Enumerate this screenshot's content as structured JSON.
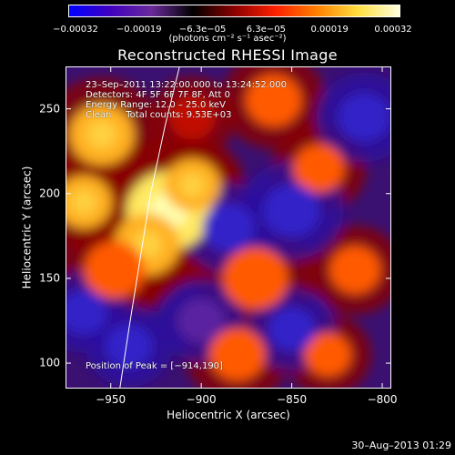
{
  "chart_data": {
    "type": "heatmap",
    "title": "Reconstructed RHESSI Image",
    "xlabel": "Heliocentric X (arcsec)",
    "ylabel": "Heliocentric Y (arcsec)",
    "xlim": [
      -975,
      -795
    ],
    "ylim": [
      85,
      275
    ],
    "x_ticks": [
      -950,
      -900,
      -850,
      -800
    ],
    "x_tick_labels": [
      "−950",
      "−900",
      "−850",
      "−800"
    ],
    "y_ticks": [
      100,
      150,
      200,
      250
    ],
    "y_tick_labels": [
      "100",
      "150",
      "200",
      "250"
    ],
    "colorbar": {
      "tick_labels": [
        "−0.00032",
        "−0.00019",
        "−6.3e−05",
        "6.3e−05",
        "0.00019",
        "0.00032"
      ],
      "units_text": "(photons cm⁻² s⁻¹ asec⁻²)",
      "range": [
        -0.00032,
        0.00032
      ],
      "colormap": [
        "#0000ff",
        "#4000c0",
        "#6a2a9a",
        "#000000",
        "#8b0000",
        "#ff2000",
        "#ff8000",
        "#ffe040",
        "#ffffe0"
      ]
    },
    "annotations": {
      "time_range": "23–Sep–2011 13:22:00.000 to 13:24:52.000",
      "detectors": "Detectors: 4F 5F 6F 7F 8F, Att 0",
      "energy_range": "Energy Range: 12.0 – 25.0 keV",
      "method_counts": "Clean     Total counts: 9.53E+03",
      "peak_position": "Position of Peak = [−914,190]"
    },
    "peak": {
      "x": -914,
      "y": 190
    },
    "limb_curve": [
      [
        -945,
        85
      ],
      [
        -940,
        120
      ],
      [
        -934,
        160
      ],
      [
        -928,
        200
      ],
      [
        -920,
        240
      ],
      [
        -912,
        275
      ]
    ],
    "sources": [
      {
        "x": -918,
        "y": 190,
        "level": 1.0,
        "sigma": 18
      },
      {
        "x": -930,
        "y": 170,
        "level": 0.75,
        "sigma": 14
      },
      {
        "x": -905,
        "y": 205,
        "level": 0.8,
        "sigma": 12
      },
      {
        "x": -955,
        "y": 235,
        "level": 0.7,
        "sigma": 14
      },
      {
        "x": -965,
        "y": 195,
        "level": 0.75,
        "sigma": 12
      },
      {
        "x": -948,
        "y": 155,
        "level": 0.55,
        "sigma": 13
      },
      {
        "x": -870,
        "y": 150,
        "level": 0.65,
        "sigma": 14
      },
      {
        "x": -880,
        "y": 105,
        "level": 0.6,
        "sigma": 12
      },
      {
        "x": -860,
        "y": 255,
        "level": 0.65,
        "sigma": 12
      },
      {
        "x": -835,
        "y": 215,
        "level": 0.55,
        "sigma": 11
      },
      {
        "x": -815,
        "y": 155,
        "level": 0.55,
        "sigma": 11
      },
      {
        "x": -830,
        "y": 105,
        "level": 0.5,
        "sigma": 10
      },
      {
        "x": -905,
        "y": 245,
        "level": 0.35,
        "sigma": 10
      },
      {
        "x": -885,
        "y": 180,
        "level": -0.5,
        "sigma": 11
      },
      {
        "x": -940,
        "y": 110,
        "level": -0.6,
        "sigma": 10
      },
      {
        "x": -850,
        "y": 190,
        "level": -0.55,
        "sigma": 12
      },
      {
        "x": -810,
        "y": 245,
        "level": -0.5,
        "sigma": 11
      },
      {
        "x": -850,
        "y": 120,
        "level": -0.5,
        "sigma": 10
      },
      {
        "x": -965,
        "y": 130,
        "level": -0.45,
        "sigma": 10
      },
      {
        "x": -900,
        "y": 125,
        "level": -0.3,
        "sigma": 10
      }
    ]
  },
  "footer": {
    "date": "30–Aug–2013 01:29"
  }
}
